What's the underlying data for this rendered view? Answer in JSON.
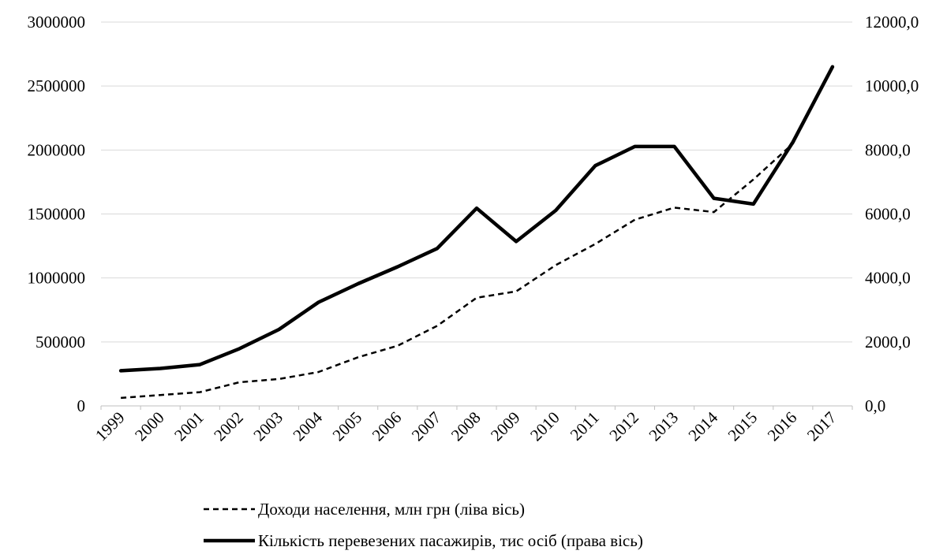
{
  "chart_data": {
    "type": "line",
    "categories": [
      "1999",
      "2000",
      "2001",
      "2002",
      "2003",
      "2004",
      "2005",
      "2006",
      "2007",
      "2008",
      "2009",
      "2010",
      "2011",
      "2012",
      "2013",
      "2014",
      "2015",
      "2016",
      "2017"
    ],
    "left_axis": {
      "ylim": [
        0,
        3000000
      ],
      "ticks": [
        0,
        500000,
        1000000,
        1500000,
        2000000,
        2500000,
        3000000
      ],
      "tick_labels": [
        "0",
        "500000",
        "1000000",
        "1500000",
        "2000000",
        "2500000",
        "3000000"
      ]
    },
    "right_axis": {
      "ylim": [
        0,
        12000
      ],
      "ticks": [
        0,
        2000,
        4000,
        6000,
        8000,
        10000,
        12000
      ],
      "tick_labels": [
        "0,0",
        "2000,0",
        "4000,0",
        "6000,0",
        "8000,0",
        "10000,0",
        "12000,0"
      ]
    },
    "series": [
      {
        "name": "Доходи населення, млн грн (ліва вісь)",
        "axis": "left",
        "style": "dashed",
        "color": "#000000",
        "values": [
          62000,
          85000,
          107000,
          185000,
          210000,
          265000,
          380000,
          470000,
          625000,
          845000,
          895000,
          1100000,
          1265000,
          1455000,
          1550000,
          1515000,
          1770000,
          2050000,
          2650000
        ]
      },
      {
        "name": "Кількість перевезених пасажирів, тис осіб (права вісь)",
        "axis": "right",
        "style": "solid",
        "color": "#000000",
        "values": [
          1100,
          1170,
          1290,
          1790,
          2390,
          3240,
          3820,
          4350,
          4920,
          6180,
          5140,
          6110,
          7510,
          8110,
          8110,
          6490,
          6310,
          8250,
          10600
        ]
      }
    ],
    "grid": true,
    "legend_position": "bottom"
  }
}
